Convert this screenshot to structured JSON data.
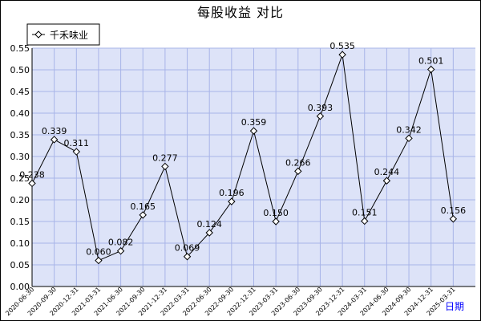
{
  "chart_data": {
    "type": "line",
    "title": "每股收益  对比",
    "xlabel": "日期",
    "ylabel": "",
    "ylim": [
      0,
      0.55
    ],
    "yticks": [
      "0.00",
      "0.05",
      "0.10",
      "0.15",
      "0.20",
      "0.25",
      "0.30",
      "0.35",
      "0.40",
      "0.45",
      "0.50",
      "0.55"
    ],
    "categories": [
      "2020-06-30",
      "2020-09-30",
      "2020-12-31",
      "2021-03-31",
      "2021-06-30",
      "2021-09-30",
      "2021-12-31",
      "2022-03-31",
      "2022-06-30",
      "2022-09-30",
      "2022-12-31",
      "2023-03-31",
      "2023-06-30",
      "2023-09-30",
      "2023-12-31",
      "2024-03-31",
      "2024-06-30",
      "2024-09-30",
      "2024-12-31",
      "2025-03-31"
    ],
    "series": [
      {
        "name": "千禾味业",
        "values": [
          0.238,
          0.339,
          0.311,
          0.06,
          0.082,
          0.165,
          0.277,
          0.069,
          0.124,
          0.196,
          0.359,
          0.15,
          0.266,
          0.393,
          0.535,
          0.151,
          0.244,
          0.342,
          0.501,
          0.156
        ],
        "labels": [
          "0.238",
          "0.339",
          "0.311",
          "0.060",
          "0.082",
          "0.165",
          "0.277",
          "0.069",
          "0.124",
          "0.196",
          "0.359",
          "0.150",
          "0.266",
          "0.393",
          "0.535",
          "0.151",
          "0.244",
          "0.342",
          "0.501",
          "0.156"
        ]
      }
    ],
    "grid": true,
    "legend_position": "top-left",
    "colors": {
      "plot_bg": "#dde3f8",
      "grid": "#a8b4e8",
      "line": "#000000",
      "marker_fill": "#ffffff"
    }
  }
}
